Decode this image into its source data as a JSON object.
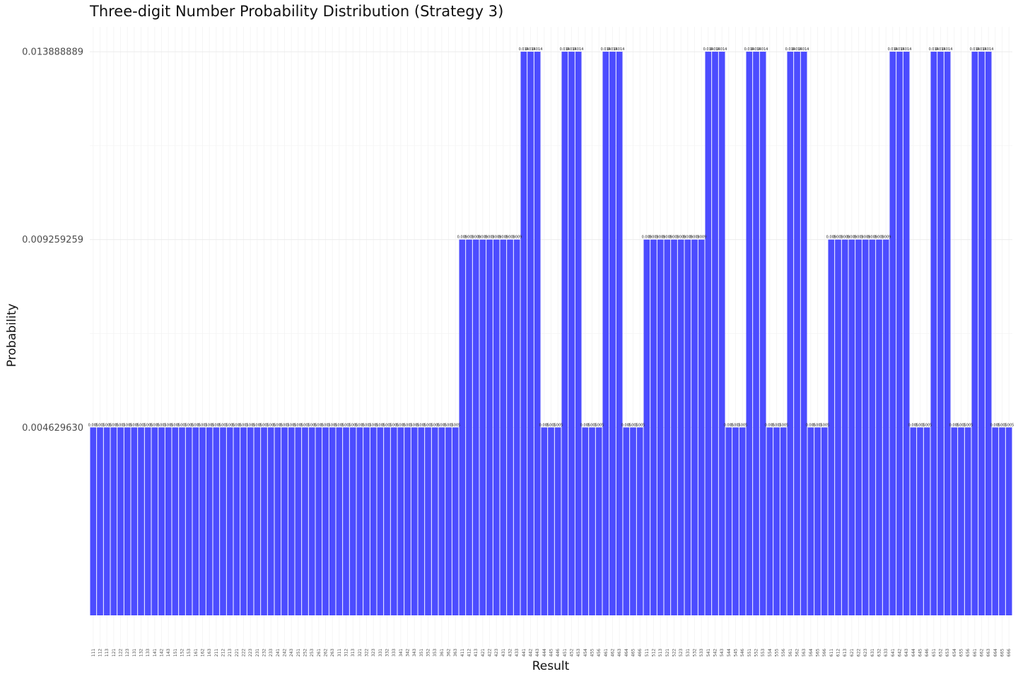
{
  "chart_data": {
    "type": "bar",
    "title": "Three-digit Number Probability Distribution (Strategy 3)",
    "xlabel": "Result",
    "ylabel": "Probability",
    "ylim": [
      0,
      0.0145
    ],
    "yticks": [
      0.00462963,
      0.009259259,
      0.013888889
    ],
    "ytick_labels": [
      "0.004629630",
      "0.009259259",
      "0.013888889"
    ],
    "grid": true,
    "bar_color": "#4c4cff",
    "categories": [
      "111",
      "112",
      "113",
      "121",
      "122",
      "123",
      "131",
      "132",
      "133",
      "141",
      "142",
      "143",
      "151",
      "152",
      "153",
      "161",
      "162",
      "163",
      "211",
      "212",
      "213",
      "221",
      "222",
      "223",
      "231",
      "232",
      "233",
      "241",
      "242",
      "243",
      "251",
      "252",
      "253",
      "261",
      "262",
      "263",
      "311",
      "312",
      "313",
      "321",
      "322",
      "323",
      "331",
      "332",
      "333",
      "341",
      "342",
      "343",
      "351",
      "352",
      "353",
      "361",
      "362",
      "363",
      "411",
      "412",
      "413",
      "421",
      "422",
      "423",
      "431",
      "432",
      "433",
      "441",
      "442",
      "443",
      "444",
      "445",
      "446",
      "451",
      "452",
      "453",
      "454",
      "455",
      "456",
      "461",
      "462",
      "463",
      "464",
      "465",
      "466",
      "511",
      "512",
      "513",
      "521",
      "522",
      "523",
      "531",
      "532",
      "533",
      "541",
      "542",
      "543",
      "544",
      "545",
      "546",
      "551",
      "552",
      "553",
      "554",
      "555",
      "556",
      "561",
      "562",
      "563",
      "564",
      "565",
      "566",
      "611",
      "612",
      "613",
      "621",
      "622",
      "623",
      "631",
      "632",
      "633",
      "641",
      "642",
      "643",
      "644",
      "645",
      "646",
      "651",
      "652",
      "653",
      "654",
      "655",
      "656",
      "661",
      "662",
      "663",
      "664",
      "665",
      "666"
    ],
    "values": [
      0.00462963,
      0.00462963,
      0.00462963,
      0.00462963,
      0.00462963,
      0.00462963,
      0.00462963,
      0.00462963,
      0.00462963,
      0.00462963,
      0.00462963,
      0.00462963,
      0.00462963,
      0.00462963,
      0.00462963,
      0.00462963,
      0.00462963,
      0.00462963,
      0.00462963,
      0.00462963,
      0.00462963,
      0.00462963,
      0.00462963,
      0.00462963,
      0.00462963,
      0.00462963,
      0.00462963,
      0.00462963,
      0.00462963,
      0.00462963,
      0.00462963,
      0.00462963,
      0.00462963,
      0.00462963,
      0.00462963,
      0.00462963,
      0.00462963,
      0.00462963,
      0.00462963,
      0.00462963,
      0.00462963,
      0.00462963,
      0.00462963,
      0.00462963,
      0.00462963,
      0.00462963,
      0.00462963,
      0.00462963,
      0.00462963,
      0.00462963,
      0.00462963,
      0.00462963,
      0.00462963,
      0.00462963,
      0.009259259,
      0.009259259,
      0.009259259,
      0.009259259,
      0.009259259,
      0.009259259,
      0.009259259,
      0.009259259,
      0.009259259,
      0.013888889,
      0.013888889,
      0.013888889,
      0.00462963,
      0.00462963,
      0.00462963,
      0.013888889,
      0.013888889,
      0.013888889,
      0.00462963,
      0.00462963,
      0.00462963,
      0.013888889,
      0.013888889,
      0.013888889,
      0.00462963,
      0.00462963,
      0.00462963,
      0.009259259,
      0.009259259,
      0.009259259,
      0.009259259,
      0.009259259,
      0.009259259,
      0.009259259,
      0.009259259,
      0.009259259,
      0.013888889,
      0.013888889,
      0.013888889,
      0.00462963,
      0.00462963,
      0.00462963,
      0.013888889,
      0.013888889,
      0.013888889,
      0.00462963,
      0.00462963,
      0.00462963,
      0.013888889,
      0.013888889,
      0.013888889,
      0.00462963,
      0.00462963,
      0.00462963,
      0.009259259,
      0.009259259,
      0.009259259,
      0.009259259,
      0.009259259,
      0.009259259,
      0.009259259,
      0.009259259,
      0.009259259,
      0.013888889,
      0.013888889,
      0.013888889,
      0.00462963,
      0.00462963,
      0.00462963,
      0.013888889,
      0.013888889,
      0.013888889,
      0.00462963,
      0.00462963,
      0.00462963,
      0.013888889,
      0.013888889,
      0.013888889,
      0.00462963,
      0.00462963,
      0.00462963
    ],
    "data_labels": [
      "0.005",
      "0.005",
      "0.005",
      "0.005",
      "0.005",
      "0.005",
      "0.005",
      "0.005",
      "0.005",
      "0.005",
      "0.005",
      "0.005",
      "0.005",
      "0.005",
      "0.005",
      "0.005",
      "0.005",
      "0.005",
      "0.005",
      "0.005",
      "0.005",
      "0.005",
      "0.005",
      "0.005",
      "0.005",
      "0.005",
      "0.005",
      "0.005",
      "0.005",
      "0.005",
      "0.005",
      "0.005",
      "0.005",
      "0.005",
      "0.005",
      "0.005",
      "0.005",
      "0.005",
      "0.005",
      "0.005",
      "0.005",
      "0.005",
      "0.005",
      "0.005",
      "0.005",
      "0.005",
      "0.005",
      "0.005",
      "0.005",
      "0.005",
      "0.005",
      "0.005",
      "0.005",
      "0.005",
      "0.009",
      "0.009",
      "0.009",
      "0.009",
      "0.009",
      "0.009",
      "0.009",
      "0.009",
      "0.009",
      "0.014",
      "0.014",
      "0.014",
      "0.005",
      "0.005",
      "0.005",
      "0.014",
      "0.014",
      "0.014",
      "0.005",
      "0.005",
      "0.005",
      "0.014",
      "0.014",
      "0.014",
      "0.005",
      "0.005",
      "0.005",
      "0.009",
      "0.009",
      "0.009",
      "0.009",
      "0.009",
      "0.009",
      "0.009",
      "0.009",
      "0.009",
      "0.014",
      "0.014",
      "0.014",
      "0.005",
      "0.005",
      "0.005",
      "0.014",
      "0.014",
      "0.014",
      "0.005",
      "0.005",
      "0.005",
      "0.014",
      "0.014",
      "0.014",
      "0.005",
      "0.005",
      "0.005",
      "0.009",
      "0.009",
      "0.009",
      "0.009",
      "0.009",
      "0.009",
      "0.009",
      "0.009",
      "0.009",
      "0.014",
      "0.014",
      "0.014",
      "0.005",
      "0.005",
      "0.005",
      "0.014",
      "0.014",
      "0.014",
      "0.005",
      "0.005",
      "0.005",
      "0.014",
      "0.014",
      "0.014",
      "0.005",
      "0.005",
      "0.005"
    ]
  }
}
